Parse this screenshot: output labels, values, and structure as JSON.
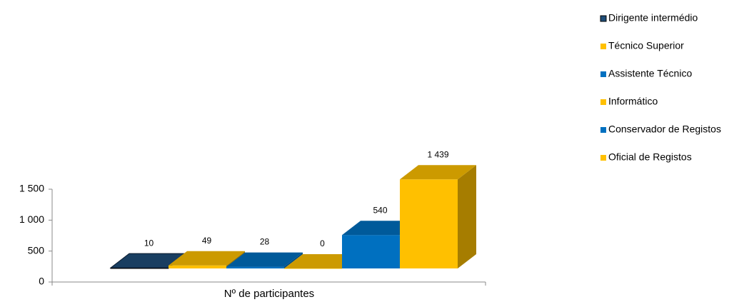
{
  "chart_data": {
    "type": "bar3d",
    "categories": [
      "Nº de participantes"
    ],
    "series": [
      {
        "name": "Dirigente intermédio",
        "color": "#1f4e79",
        "values": [
          10
        ],
        "value_labels": [
          "10"
        ]
      },
      {
        "name": "Técnico Superior",
        "color": "#ffc000",
        "values": [
          49
        ],
        "value_labels": [
          "49"
        ]
      },
      {
        "name": "Assistente Técnico",
        "color": "#0070c0",
        "values": [
          28
        ],
        "value_labels": [
          "28"
        ]
      },
      {
        "name": "Informático",
        "color": "#ffc000",
        "values": [
          0
        ],
        "value_labels": [
          "0"
        ]
      },
      {
        "name": "Conservador de Registos",
        "color": "#0070c0",
        "values": [
          540
        ],
        "value_labels": [
          "540"
        ]
      },
      {
        "name": "Oficial de Registos",
        "color": "#ffc000",
        "values": [
          1439
        ],
        "value_labels": [
          "1 439"
        ]
      }
    ],
    "ylim": [
      0,
      1500
    ],
    "yticks": [
      0,
      500,
      {
        "value": 1000,
        "label": "1 000"
      },
      {
        "value": 1500,
        "label": "1 500"
      }
    ],
    "legend": "right"
  }
}
